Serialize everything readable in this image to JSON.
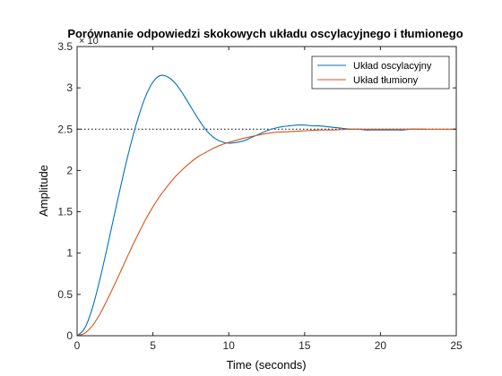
{
  "chart_data": {
    "type": "line",
    "title": "Porównanie odpowiedzi skokowych układu oscylacyjnego i tłumionego",
    "xlabel": "Time (seconds)",
    "ylabel": "Amplitude",
    "xlim": [
      0,
      25
    ],
    "ylim": [
      0,
      3.5
    ],
    "y_exponent_label": "× 10",
    "x_ticks": [
      "0",
      "5",
      "10",
      "15",
      "20",
      "25"
    ],
    "y_ticks": [
      "0",
      "0.5",
      "1",
      "1.5",
      "2",
      "2.5",
      "3",
      "3.5"
    ],
    "steady_state": 2.5,
    "grid": false,
    "legend_position": "top-right",
    "series": [
      {
        "name": "Układ oscylacyjny",
        "color": "#0072BD",
        "x": [
          0,
          0.5,
          1,
          1.5,
          2,
          2.5,
          3,
          3.5,
          4,
          4.5,
          5,
          5.5,
          6,
          6.5,
          7,
          7.5,
          8,
          8.5,
          9,
          9.5,
          10,
          10.5,
          11,
          11.5,
          12,
          12.5,
          13,
          13.5,
          14,
          14.5,
          15,
          15.5,
          16,
          16.5,
          17,
          17.5,
          18,
          18.5,
          19,
          19.5,
          20,
          20.5,
          21,
          21.5,
          22,
          22.5,
          23
        ],
        "values": [
          0,
          0.09,
          0.33,
          0.68,
          1.08,
          1.5,
          1.91,
          2.29,
          2.62,
          2.89,
          3.07,
          3.15,
          3.13,
          3.05,
          2.92,
          2.77,
          2.62,
          2.49,
          2.4,
          2.35,
          2.33,
          2.34,
          2.36,
          2.4,
          2.44,
          2.48,
          2.51,
          2.53,
          2.54,
          2.55,
          2.55,
          2.54,
          2.54,
          2.53,
          2.52,
          2.51,
          2.5,
          2.5,
          2.49,
          2.49,
          2.49,
          2.49,
          2.49,
          2.49,
          2.5,
          2.5,
          2.5
        ]
      },
      {
        "name": "Układ tłumiony",
        "color": "#D95319",
        "x": [
          0,
          0.5,
          1,
          1.5,
          2,
          2.5,
          3,
          3.5,
          4,
          4.5,
          5,
          5.5,
          6,
          6.5,
          7,
          7.5,
          8,
          8.5,
          9,
          9.5,
          10,
          11,
          12,
          13,
          14,
          15,
          16,
          17,
          18,
          19,
          20,
          21,
          22,
          23,
          24,
          25
        ],
        "values": [
          0,
          0.03,
          0.12,
          0.26,
          0.44,
          0.63,
          0.83,
          1.03,
          1.22,
          1.4,
          1.56,
          1.7,
          1.82,
          1.93,
          2.02,
          2.1,
          2.17,
          2.22,
          2.27,
          2.31,
          2.34,
          2.39,
          2.43,
          2.46,
          2.47,
          2.48,
          2.49,
          2.49,
          2.5,
          2.5,
          2.5,
          2.5,
          2.5,
          2.5,
          2.5,
          2.5
        ]
      }
    ]
  }
}
